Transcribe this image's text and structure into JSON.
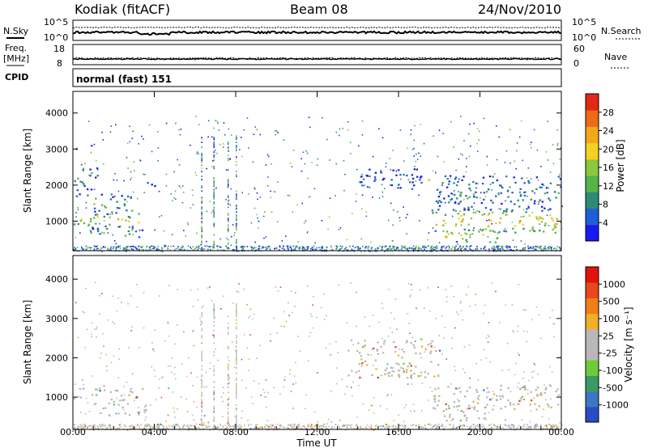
{
  "header": {
    "station": "Kodiak (fitACF)",
    "beam": "Beam 08",
    "date": "24/Nov/2010"
  },
  "top_strip": {
    "left_label": "N.Sky",
    "right_label": "N.Search",
    "y_ticks": [
      "10^5",
      "10^0"
    ]
  },
  "freq_strip": {
    "left_label_1": "Freq.",
    "left_label_2": "[MHz]",
    "left_ticks": [
      "18",
      "8"
    ],
    "right_label": "Nave",
    "right_ticks": [
      "60",
      "0"
    ]
  },
  "cpid": {
    "label": "CPID",
    "value": "normal (fast) 151"
  },
  "chart_data": [
    {
      "type": "heatmap",
      "panel": "power",
      "ylabel": "Slant Range [km]",
      "ylim": [
        180,
        4600
      ],
      "y_ticks": [
        1000,
        2000,
        3000,
        4000
      ],
      "colorbar_label": "Power [dB]",
      "colorbar_ticks": [
        4,
        8,
        12,
        16,
        20,
        24,
        28
      ],
      "colorbar_colors": [
        "#1a1aee",
        "#1f5fd6",
        "#2e8a78",
        "#55b44a",
        "#8cc83c",
        "#f2d21e",
        "#f3a81c",
        "#ef6a18",
        "#e02a14"
      ],
      "regions": [
        {
          "t0": 0.0,
          "t1": 3.2,
          "r0": 850,
          "r1": 1250,
          "level": 0.55
        },
        {
          "t0": 0.8,
          "t1": 3.6,
          "r0": 560,
          "r1": 850,
          "level": 0.35
        },
        {
          "t0": 0.1,
          "t1": 1.2,
          "r0": 1700,
          "r1": 2500,
          "level": 0.3
        },
        {
          "t0": 1.0,
          "t1": 3.1,
          "r0": 1200,
          "r1": 1800,
          "level": 0.35
        },
        {
          "t0": 3.6,
          "t1": 4.0,
          "r0": 1800,
          "r1": 2150,
          "level": 0.2
        },
        {
          "t0": 17.6,
          "t1": 24.0,
          "r0": 700,
          "r1": 1350,
          "level": 0.7
        },
        {
          "t0": 18.2,
          "t1": 21.0,
          "r0": 420,
          "r1": 800,
          "level": 0.6
        },
        {
          "t0": 17.8,
          "t1": 24.0,
          "r0": 1300,
          "r1": 2300,
          "level": 0.25
        },
        {
          "t0": 14.0,
          "t1": 17.2,
          "r0": 1900,
          "r1": 2500,
          "level": 0.1
        }
      ]
    },
    {
      "type": "heatmap",
      "panel": "velocity",
      "ylabel": "Slant Range [km]",
      "xlabel": "Time UT",
      "ylim": [
        180,
        4600
      ],
      "y_ticks": [
        1000,
        2000,
        3000,
        4000
      ],
      "x_ticks": [
        "00:00",
        "04:00",
        "08:00",
        "12:00",
        "16:00",
        "20:00",
        "00:00"
      ],
      "colorbar_label": "Velocity [m s⁻¹]",
      "colorbar_ticks": [
        1000,
        500,
        100,
        25,
        -25,
        -100,
        -500,
        -1000
      ],
      "colorbar_colors": [
        "#2a4ec2",
        "#3b78c4",
        "#3a9a66",
        "#6ccc3a",
        "#b8b8b8",
        "#b8b8b8",
        "#f2b028",
        "#f07f18",
        "#e8481c",
        "#e0140c"
      ],
      "regions": [
        {
          "t0": 0.0,
          "t1": 3.2,
          "r0": 850,
          "r1": 1250,
          "level": 0.5
        },
        {
          "t0": 0.8,
          "t1": 3.6,
          "r0": 560,
          "r1": 850,
          "level": 0.35
        },
        {
          "t0": 17.6,
          "t1": 24.0,
          "r0": 700,
          "r1": 1350,
          "level": 0.6
        },
        {
          "t0": 18.2,
          "t1": 21.0,
          "r0": 420,
          "r1": 800,
          "level": 0.5
        },
        {
          "t0": 13.5,
          "t1": 18.0,
          "r0": 1500,
          "r1": 2500,
          "level": 0.2
        }
      ]
    }
  ]
}
